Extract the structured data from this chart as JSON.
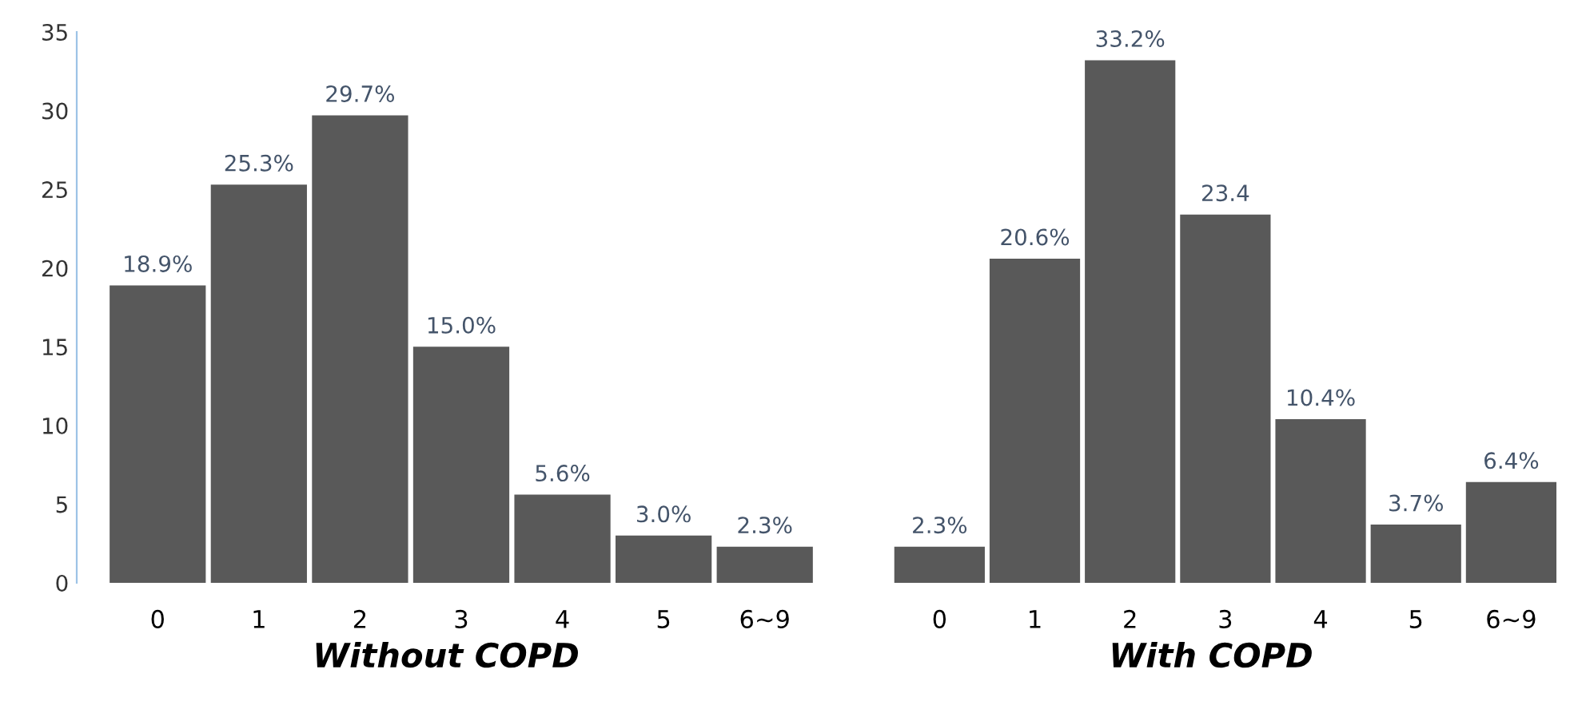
{
  "chart_data": [
    {
      "type": "bar",
      "xlabel": "Without COPD",
      "categories": [
        "0",
        "1",
        "2",
        "3",
        "4",
        "5",
        "6~9"
      ],
      "values": [
        18.9,
        25.3,
        29.7,
        15.0,
        5.6,
        3.0,
        2.3
      ],
      "value_labels": [
        "18.9%",
        "25.3%",
        "29.7%",
        "15.0%",
        "5.6%",
        "3.0%",
        "2.3%"
      ],
      "color": "#595959",
      "ylim": [
        0,
        35
      ],
      "yticks": [
        0,
        5,
        10,
        15,
        20,
        25,
        30,
        35
      ],
      "grid": false
    },
    {
      "type": "bar",
      "xlabel": "With COPD",
      "categories": [
        "0",
        "1",
        "2",
        "3",
        "4",
        "5",
        "6~9"
      ],
      "values": [
        2.3,
        20.6,
        33.2,
        23.4,
        10.4,
        3.7,
        6.4
      ],
      "value_labels": [
        "2.3%",
        "20.6%",
        "33.2%",
        "23.4",
        "10.4%",
        "3.7%",
        "6.4%"
      ],
      "color": "#595959",
      "ylim": [
        0,
        35
      ],
      "yticks": [
        0,
        5,
        10,
        15,
        20,
        25,
        30,
        35
      ],
      "grid": false,
      "tick_labels": "x"
    }
  ]
}
